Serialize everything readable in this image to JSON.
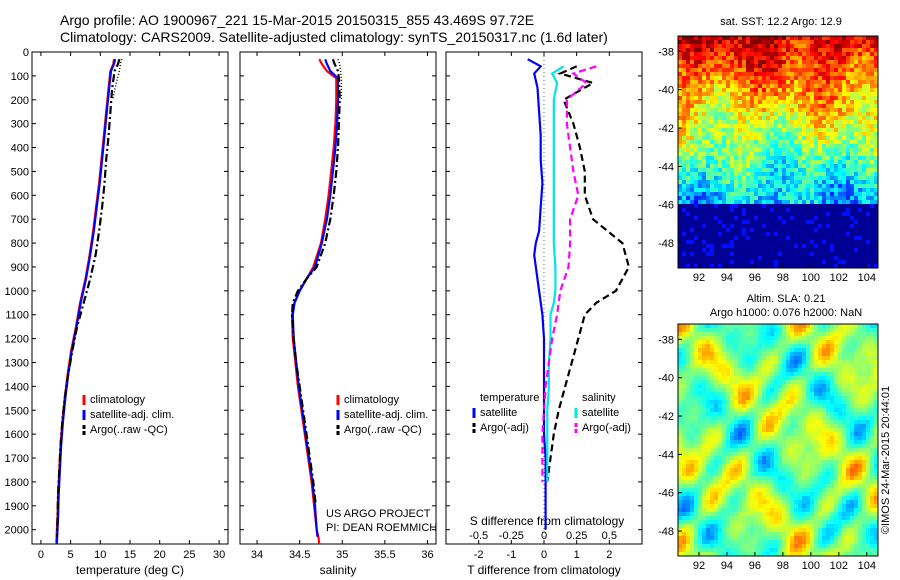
{
  "header": {
    "line1": "Argo profile: AO 1900967_221 15-Mar-2015 20150315_855 43.469S 97.72E",
    "line2": "Climatology: CARS2009. Satellite-adjusted climatology: synTS_20150317.nc (1.6d later)"
  },
  "colors": {
    "climatology": "#ff0000",
    "satellite": "#0000ff",
    "argo": "#000000",
    "sal_satellite": "#00e5e5",
    "sal_argo": "#ff00ff"
  },
  "chart_data": [
    {
      "type": "line",
      "name": "temperature-profile",
      "xlabel": "temperature (deg C)",
      "ylabel": "",
      "xlim": [
        -1.5,
        31.5
      ],
      "ylim": [
        2060,
        0
      ],
      "xticks": [
        "0",
        "5",
        "10",
        "15",
        "20",
        "25",
        "30"
      ],
      "yticks": [
        "0",
        "100",
        "200",
        "300",
        "400",
        "500",
        "600",
        "700",
        "800",
        "900",
        "1000",
        "1100",
        "1200",
        "1300",
        "1400",
        "1500",
        "1600",
        "1700",
        "1800",
        "1900",
        "2000"
      ],
      "legend": [
        "climatology",
        "satellite-adj. clim.",
        "Argo(..raw -QC)"
      ],
      "legend_position": "lower-right",
      "series": [
        {
          "name": "climatology",
          "style": "solid",
          "color": "#ff0000",
          "x": [
            12.3,
            12.2,
            11.7,
            11.4,
            11.0,
            10.6,
            10.2,
            9.8,
            9.3,
            8.8,
            8.2,
            7.5,
            6.6,
            5.9,
            5.1,
            4.5,
            4.0,
            3.6,
            3.3,
            3.1,
            2.9,
            2.8,
            2.7,
            2.65,
            2.6,
            2.6
          ],
          "y": [
            30,
            50,
            80,
            150,
            250,
            350,
            450,
            550,
            650,
            750,
            850,
            950,
            1050,
            1150,
            1250,
            1350,
            1450,
            1550,
            1650,
            1750,
            1850,
            1950,
            2000,
            2030,
            2050,
            2060
          ]
        },
        {
          "name": "satellite-adj. clim.",
          "style": "solid",
          "color": "#0000ff",
          "x": [
            12.5,
            12.3,
            11.8,
            11.5,
            11.1,
            10.7,
            10.3,
            9.9,
            9.4,
            8.9,
            8.3,
            7.6,
            6.7,
            6.0,
            5.2,
            4.6,
            4.1,
            3.7,
            3.4,
            3.2,
            3.0,
            2.9,
            2.8,
            2.75,
            2.7,
            2.7
          ],
          "y": [
            30,
            50,
            80,
            150,
            250,
            350,
            450,
            550,
            650,
            750,
            850,
            950,
            1050,
            1150,
            1250,
            1350,
            1450,
            1550,
            1650,
            1750,
            1850,
            1950,
            2000,
            2030,
            2050,
            2060
          ]
        },
        {
          "name": "Argo(..raw -QC)",
          "style": "dashdot",
          "color": "#000000",
          "x": [
            13.2,
            13.0,
            12.4,
            12.0,
            11.7,
            11.4,
            11.0,
            10.7,
            10.3,
            9.8,
            9.2,
            8.3,
            7.2,
            6.1,
            5.3,
            4.6,
            4.0,
            3.6,
            3.3,
            3.1,
            2.9,
            2.8,
            2.75,
            2.7
          ],
          "y": [
            30,
            50,
            80,
            150,
            250,
            350,
            450,
            550,
            650,
            750,
            850,
            950,
            1050,
            1150,
            1250,
            1350,
            1450,
            1550,
            1650,
            1750,
            1850,
            1950,
            2000,
            2030
          ]
        },
        {
          "name": "Argo raw (dotted)",
          "style": "dotted",
          "color": "#000000",
          "x": [
            13.6,
            13.4,
            13.2,
            12.8,
            12.4,
            12.1
          ],
          "y": [
            30,
            50,
            80,
            120,
            160,
            200
          ]
        }
      ]
    },
    {
      "type": "line",
      "name": "salinity-profile",
      "xlabel": "salinity",
      "ylabel": "",
      "xlim": [
        33.8,
        36.1
      ],
      "ylim": [
        2060,
        0
      ],
      "xticks": [
        "34",
        "34.5",
        "35",
        "35.5",
        "36"
      ],
      "legend": [
        "climatology",
        "satellite-adj. clim.",
        "Argo(..raw -QC)"
      ],
      "legend_position": "lower-right",
      "annotation": [
        "US ARGO PROJECT",
        "PI: DEAN ROEMMICH"
      ],
      "series": [
        {
          "name": "climatology",
          "style": "solid",
          "color": "#ff0000",
          "x": [
            34.73,
            34.76,
            34.82,
            34.93,
            34.93,
            34.92,
            34.9,
            34.87,
            34.84,
            34.8,
            34.75,
            34.66,
            34.58,
            34.5,
            34.44,
            34.41,
            34.42,
            34.45,
            34.48,
            34.52,
            34.56,
            34.6,
            34.64,
            34.67,
            34.7,
            34.72,
            34.73
          ],
          "y": [
            30,
            50,
            80,
            110,
            200,
            300,
            400,
            500,
            600,
            700,
            800,
            900,
            950,
            1000,
            1050,
            1100,
            1200,
            1300,
            1400,
            1500,
            1600,
            1700,
            1800,
            1900,
            2000,
            2030,
            2060
          ]
        },
        {
          "name": "satellite-adj. clim.",
          "style": "solid",
          "color": "#0000ff",
          "x": [
            34.8,
            34.82,
            34.86,
            34.95,
            34.95,
            34.94,
            34.92,
            34.89,
            34.86,
            34.82,
            34.76,
            34.68,
            34.58,
            34.5,
            34.44,
            34.42,
            34.43,
            34.46,
            34.49,
            34.53,
            34.57,
            34.61,
            34.65,
            34.68,
            34.7,
            34.71
          ],
          "y": [
            30,
            50,
            80,
            110,
            200,
            300,
            400,
            500,
            600,
            700,
            800,
            900,
            950,
            1000,
            1050,
            1100,
            1200,
            1300,
            1400,
            1500,
            1600,
            1700,
            1800,
            1900,
            2000,
            2030
          ]
        },
        {
          "name": "Argo(..raw -QC)",
          "style": "dashdot",
          "color": "#000000",
          "x": [
            34.89,
            34.91,
            34.95,
            34.96,
            34.97,
            34.96,
            34.95,
            34.93,
            34.9,
            34.86,
            34.8,
            34.7,
            34.58,
            34.48,
            34.42,
            34.41,
            34.43,
            34.46,
            34.5,
            34.54,
            34.58,
            34.62,
            34.66,
            34.69
          ],
          "y": [
            30,
            50,
            80,
            110,
            200,
            300,
            400,
            500,
            600,
            700,
            800,
            900,
            950,
            1000,
            1050,
            1100,
            1200,
            1300,
            1400,
            1500,
            1600,
            1700,
            1800,
            1900
          ]
        },
        {
          "name": "Argo raw (dotted)",
          "style": "dotted",
          "color": "#000000",
          "x": [
            34.95,
            34.97,
            34.98,
            34.99,
            34.99,
            34.99
          ],
          "y": [
            30,
            50,
            80,
            120,
            160,
            200
          ]
        }
      ]
    },
    {
      "type": "line",
      "name": "difference-profile",
      "xlabel": "T difference from climatology",
      "xlabel_top": "S difference from climatology",
      "xlim": [
        -3,
        3
      ],
      "ylim": [
        2060,
        0
      ],
      "xticks": [
        "-2",
        "-1",
        "0",
        "1",
        "2"
      ],
      "xticks_S": [
        "-0.5",
        "-0.25",
        "0",
        "0.25",
        "0.5"
      ],
      "legend_groups": [
        {
          "title": "temperature",
          "entries": [
            "satellite",
            "Argo(-adj)"
          ]
        },
        {
          "title": "salinity",
          "entries": [
            "satellite",
            "Argo(-adj)"
          ]
        }
      ],
      "legend_position": "lower-center",
      "series": [
        {
          "name": "temperature satellite",
          "style": "solid",
          "color": "#0000ff",
          "x": [
            -0.5,
            -0.1,
            -0.3,
            -0.2,
            -0.15,
            -0.1,
            -0.1,
            -0.05,
            -0.1,
            -0.15,
            -0.25,
            -0.3,
            -0.15,
            -0.05,
            0.0,
            0.0,
            0.0,
            0.0,
            0.0,
            0.05,
            0.05,
            0.05,
            0.05
          ],
          "y": [
            30,
            60,
            90,
            150,
            250,
            350,
            450,
            550,
            650,
            750,
            800,
            850,
            1000,
            1100,
            1200,
            1300,
            1400,
            1500,
            1600,
            1700,
            1800,
            1900,
            2000
          ]
        },
        {
          "name": "temperature Argo(-adj)",
          "style": "dashed",
          "color": "#000000",
          "x": [
            1.0,
            0.5,
            1.5,
            0.6,
            0.9,
            1.1,
            1.25,
            1.25,
            1.5,
            2.4,
            2.6,
            2.2,
            1.6,
            1.25,
            1.05,
            0.85,
            0.65,
            0.45,
            0.3,
            0.2,
            0.1
          ],
          "y": [
            60,
            90,
            130,
            200,
            300,
            400,
            500,
            600,
            700,
            800,
            900,
            1000,
            1050,
            1100,
            1200,
            1300,
            1400,
            1500,
            1600,
            1700,
            1800
          ]
        },
        {
          "name": "salinity satellite",
          "style": "solid",
          "color": "#00e5e5",
          "x": [
            0.6,
            0.25,
            0.4,
            0.3,
            0.3,
            0.3,
            0.3,
            0.3,
            0.3,
            0.3,
            0.35,
            0.35,
            0.3,
            0.2,
            0.2,
            0.15,
            0.15,
            0.1,
            0.1,
            0.1,
            0.1
          ],
          "y": [
            60,
            90,
            130,
            200,
            300,
            400,
            500,
            600,
            700,
            800,
            900,
            1000,
            1050,
            1100,
            1200,
            1300,
            1400,
            1500,
            1600,
            1700,
            1800
          ]
        },
        {
          "name": "salinity Argo(-adj)",
          "style": "dashed",
          "color": "#ff00ff",
          "x": [
            1.6,
            0.9,
            1.3,
            0.7,
            0.7,
            0.8,
            0.9,
            1.05,
            0.8,
            0.8,
            0.75,
            0.5,
            0.4,
            0.25,
            0.15,
            0.05,
            0.0,
            -0.05,
            -0.05,
            -0.05
          ],
          "y": [
            60,
            90,
            130,
            200,
            300,
            400,
            500,
            600,
            700,
            800,
            900,
            1000,
            1100,
            1200,
            1300,
            1400,
            1500,
            1600,
            1700,
            1800
          ]
        }
      ]
    },
    {
      "type": "heatmap",
      "name": "sst-map",
      "title": "sat. SST: 12.2 Argo: 12.9",
      "xlim": [
        90.5,
        104.8
      ],
      "ylim": [
        -49.3,
        -37.2
      ],
      "xticks": [
        "92",
        "94",
        "96",
        "98",
        "100",
        "102",
        "104"
      ],
      "yticks": [
        "-38",
        "-40",
        "-42",
        "-44",
        "-46",
        "-48"
      ],
      "colormap": "jet"
    },
    {
      "type": "heatmap",
      "name": "sla-map",
      "title_lines": [
        "Altim. SLA: 0.21",
        "Argo h1000: 0.076 h2000: NaN"
      ],
      "xlim": [
        90.5,
        104.8
      ],
      "ylim": [
        -49.3,
        -37.2
      ],
      "xticks": [
        "92",
        "94",
        "96",
        "98",
        "100",
        "102",
        "104"
      ],
      "yticks": [
        "-38",
        "-40",
        "-42",
        "-44",
        "-46",
        "-48"
      ],
      "colormap": "jet"
    }
  ],
  "side_stamp": "©IMOS 24-Mar-2015 20:44:01"
}
